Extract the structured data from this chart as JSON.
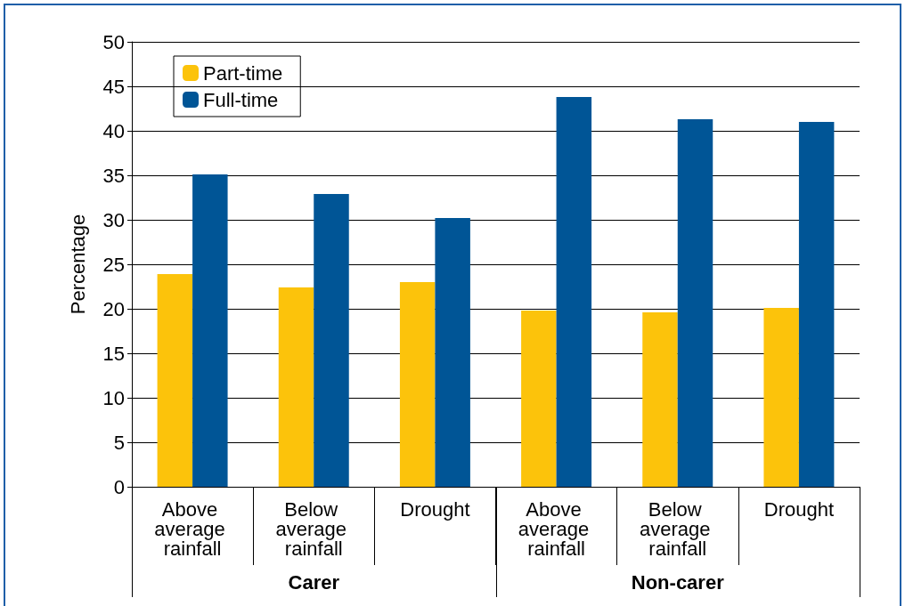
{
  "chart_data": {
    "type": "bar",
    "ylabel": "Percentage",
    "categories": [
      "Above average rainfall",
      "Below average rainfall",
      "Drought",
      "Above average rainfall",
      "Below average rainfall",
      "Drought"
    ],
    "series": [
      {
        "name": "Part-time",
        "color": "#fcc30b",
        "values": [
          23.9,
          22.4,
          23.0,
          19.8,
          19.6,
          20.1
        ]
      },
      {
        "name": "Full-time",
        "color": "#005596",
        "values": [
          35.1,
          32.9,
          30.2,
          43.8,
          41.3,
          41.0
        ]
      }
    ],
    "annotations": [
      "Carer",
      "Non-carer"
    ],
    "ylim": [
      0,
      50
    ],
    "yticks": [
      0,
      5,
      10,
      15,
      20,
      25,
      30,
      35,
      40,
      45,
      50
    ],
    "grid": "y",
    "legend": "top left"
  }
}
